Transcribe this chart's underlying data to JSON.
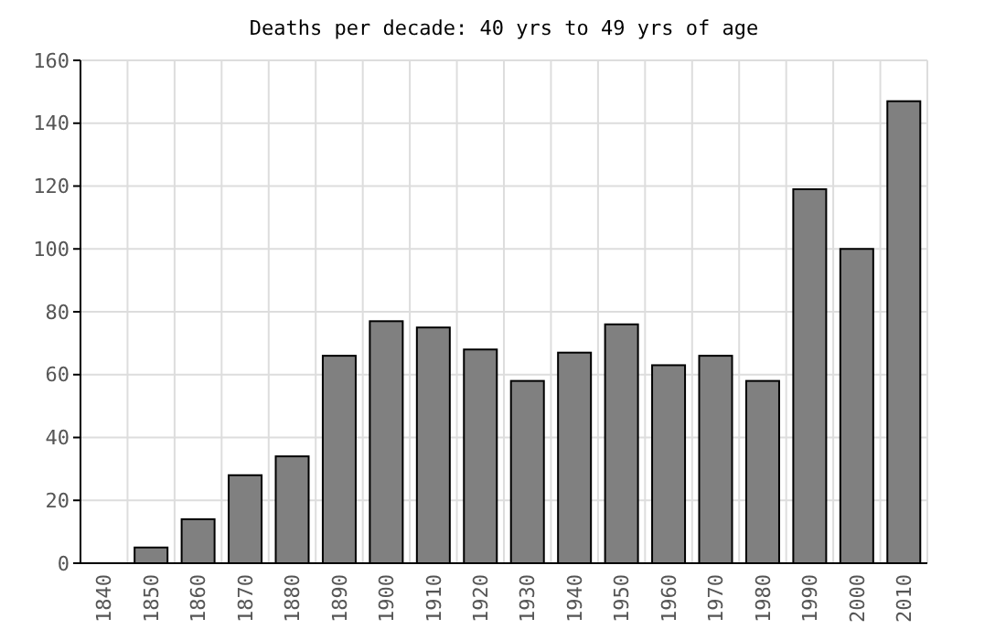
{
  "chart_data": {
    "type": "bar",
    "title": "Deaths per decade: 40 yrs to 49 yrs of age",
    "categories": [
      "1840",
      "1850",
      "1860",
      "1870",
      "1880",
      "1890",
      "1900",
      "1910",
      "1920",
      "1930",
      "1940",
      "1950",
      "1960",
      "1970",
      "1980",
      "1990",
      "2000",
      "2010"
    ],
    "values": [
      0,
      5,
      14,
      28,
      34,
      66,
      77,
      75,
      68,
      58,
      67,
      76,
      63,
      66,
      58,
      119,
      100,
      147
    ],
    "color": "#808080",
    "ylim": [
      0,
      160
    ],
    "yticks": [
      0,
      20,
      40,
      60,
      80,
      100,
      120,
      140,
      160
    ],
    "grid": true
  }
}
